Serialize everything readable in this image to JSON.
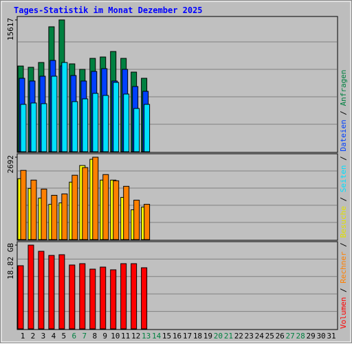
{
  "chart_data": [
    {
      "type": "bar",
      "title": "Tages-Statistik im Monat Dezember 2025",
      "ylim": [
        0,
        15617
      ],
      "yticks": [
        15617
      ],
      "series": [
        {
          "name": "Anfragen",
          "color": "#008040",
          "values": [
            10156,
            10005,
            10574,
            14804,
            15617,
            10411,
            9761,
            11062,
            11225,
            11876,
            11062,
            9435,
            8703,
            null,
            null,
            null,
            null,
            null,
            null,
            null,
            null,
            null,
            null,
            null,
            null,
            null,
            null,
            null,
            null,
            null,
            null
          ]
        },
        {
          "name": "Dateien",
          "color": "#0040ff",
          "values": [
            8703,
            8378,
            8947,
            10818,
            10167,
            9029,
            8378,
            9517,
            9842,
            8378,
            9761,
            7727,
            7158,
            null,
            null,
            null,
            null,
            null,
            null,
            null,
            null,
            null,
            null,
            null,
            null,
            null,
            null,
            null,
            null,
            null,
            null
          ]
        },
        {
          "name": "Seiten",
          "color": "#00e0ff",
          "values": [
            5612,
            5775,
            5694,
            8947,
            10574,
            5938,
            6263,
            6914,
            6670,
            8215,
            6832,
            5124,
            5612,
            null,
            null,
            null,
            null,
            null,
            null,
            null,
            null,
            null,
            null,
            null,
            null,
            null,
            null,
            null,
            null,
            null,
            null
          ]
        }
      ]
    },
    {
      "type": "bar",
      "ylim": [
        0,
        2692
      ],
      "yticks": [
        2692
      ],
      "series": [
        {
          "name": "Besuche",
          "color": "#ffff00",
          "values": [
            1991,
            1674,
            1357,
            1154,
            1199,
            1878,
            2421,
            2624,
            1945,
            1945,
            1380,
            973,
            1063,
            null,
            null,
            null,
            null,
            null,
            null,
            null,
            null,
            null,
            null,
            null,
            null,
            null,
            null,
            null,
            null,
            null,
            null
          ]
        },
        {
          "name": "Rechner",
          "color": "#ff8000",
          "values": [
            2262,
            1945,
            1651,
            1448,
            1493,
            2104,
            2353,
            2692,
            2126,
            1923,
            1742,
            1289,
            1154,
            null,
            null,
            null,
            null,
            null,
            null,
            null,
            null,
            null,
            null,
            null,
            null,
            null,
            null,
            null,
            null,
            null,
            null
          ]
        }
      ]
    },
    {
      "type": "bar",
      "ylim": [
        0,
        18.82
      ],
      "yticks": [
        {
          "value": 18.82,
          "label": "18.82 GB"
        }
      ],
      "categories": [
        "1",
        "2",
        "3",
        "4",
        "5",
        "6",
        "7",
        "8",
        "9",
        "10",
        "11",
        "12",
        "13",
        "14",
        "15",
        "16",
        "17",
        "18",
        "19",
        "20",
        "21",
        "22",
        "23",
        "24",
        "25",
        "26",
        "27",
        "28",
        "29",
        "30",
        "31"
      ],
      "category_colors": [
        "#000000",
        "#000000",
        "#000000",
        "#000000",
        "#000000",
        "#008040",
        "#008040",
        "#000000",
        "#000000",
        "#000000",
        "#000000",
        "#000000",
        "#008040",
        "#008040",
        "#000000",
        "#000000",
        "#000000",
        "#000000",
        "#000000",
        "#008040",
        "#008040",
        "#000000",
        "#000000",
        "#000000",
        "#000000",
        "#000000",
        "#008040",
        "#008040",
        "#000000",
        "#000000",
        "#000000"
      ],
      "series": [
        {
          "name": "Volumen",
          "color": "#ff0000",
          "values": [
            14.19,
            18.82,
            17.43,
            16.5,
            16.66,
            14.35,
            14.65,
            13.42,
            13.88,
            13.27,
            14.65,
            14.65,
            13.73,
            null,
            null,
            null,
            null,
            null,
            null,
            null,
            null,
            null,
            null,
            null,
            null,
            null,
            null,
            null,
            null,
            null,
            null
          ]
        }
      ]
    }
  ]
}
